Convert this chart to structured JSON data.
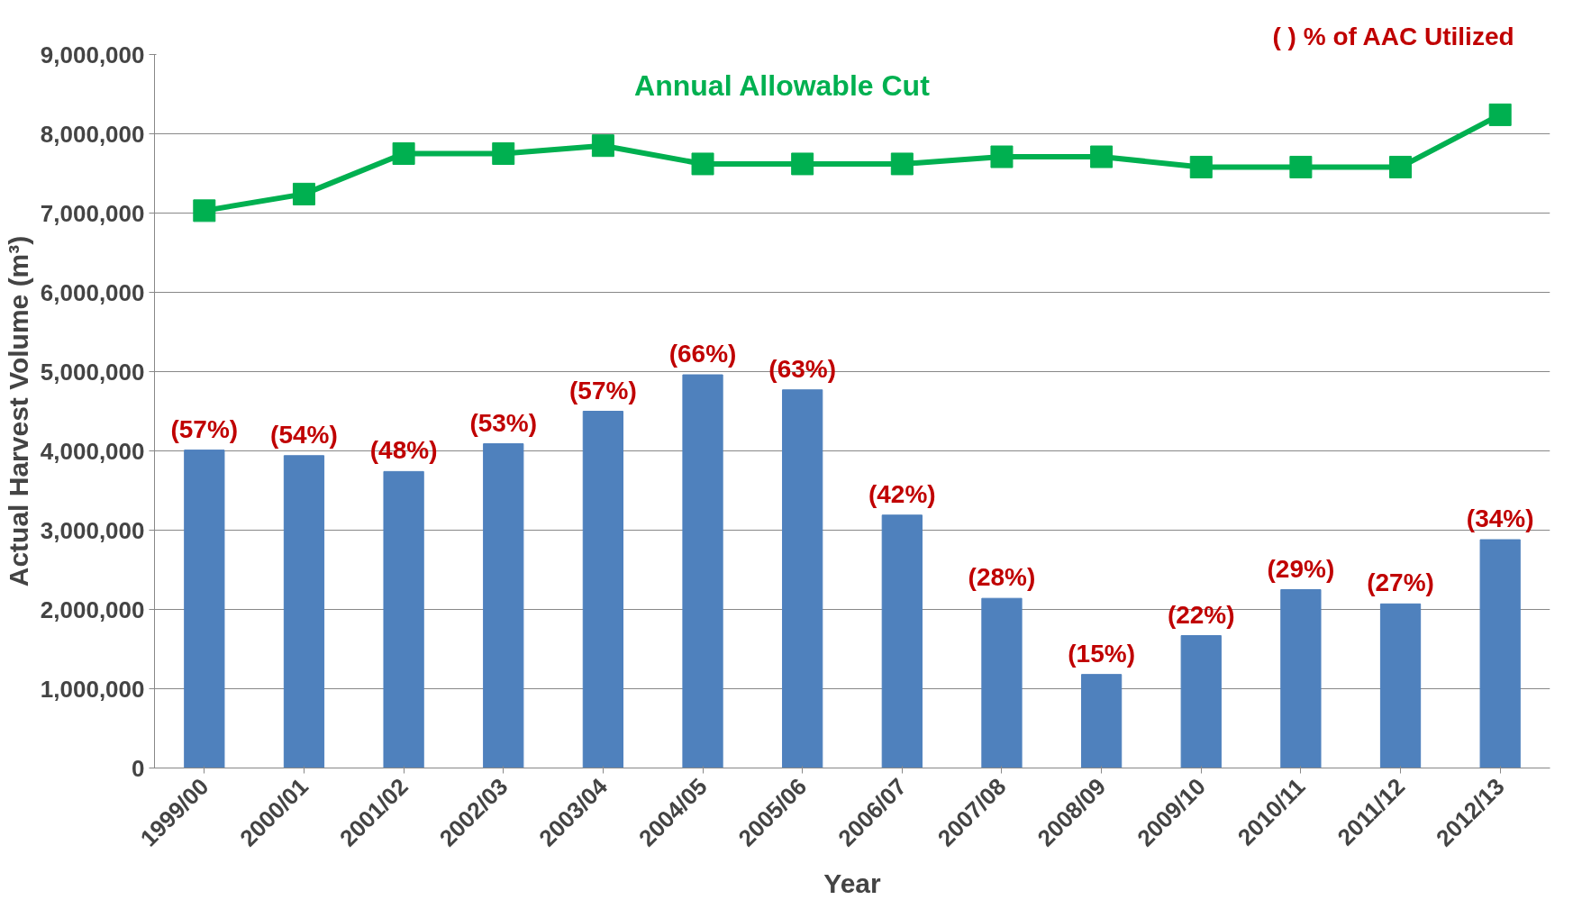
{
  "chart_data": {
    "type": "bar",
    "xlabel": "Year",
    "ylabel": "Actual Harvest Volume (m³)",
    "categories": [
      "1999/00",
      "2000/01",
      "2001/02",
      "2002/03",
      "2003/04",
      "2004/05",
      "2005/06",
      "2006/07",
      "2007/08",
      "2008/09",
      "2009/10",
      "2010/11",
      "2011/12",
      "2012/13"
    ],
    "series": [
      {
        "color": "#4f81bd",
        "values": [
          4010000,
          3940000,
          3740000,
          4090000,
          4500000,
          4960000,
          4770000,
          3190000,
          2140000,
          1180000,
          1670000,
          2250000,
          2070000,
          2880000
        ]
      },
      {
        "type": "line",
        "name": "Annual Allowable Cut",
        "color": "#00b050",
        "marker": "square",
        "values": [
          7030000,
          7240000,
          7750000,
          7750000,
          7850000,
          7620000,
          7620000,
          7620000,
          7710000,
          7710000,
          7580000,
          7580000,
          7580000,
          8240000
        ]
      }
    ],
    "ylim": [
      0,
      9000000
    ],
    "yticks": [
      {
        "value": 0,
        "label": "0"
      },
      {
        "value": 1000000,
        "label": "1,000,000"
      },
      {
        "value": 2000000,
        "label": "2,000,000"
      },
      {
        "value": 3000000,
        "label": "3,000,000"
      },
      {
        "value": 4000000,
        "label": "4,000,000"
      },
      {
        "value": 5000000,
        "label": "5,000,000"
      },
      {
        "value": 6000000,
        "label": "6,000,000"
      },
      {
        "value": 7000000,
        "label": "7,000,000"
      },
      {
        "value": 8000000,
        "label": "8,000,000"
      },
      {
        "value": 9000000,
        "label": "9,000,000"
      }
    ],
    "grid": "y",
    "legend": false,
    "annotations": [
      "(      ) % of AAC Utilized",
      {
        "text": "(57%)",
        "x": "1999/00",
        "y": 4010000
      },
      {
        "text": "(54%)",
        "x": "2000/01",
        "y": 3940000
      },
      {
        "text": "(48%)",
        "x": "2001/02",
        "y": 3740000
      },
      {
        "text": "(53%)",
        "x": "2002/03",
        "y": 4090000
      },
      {
        "text": "(57%)",
        "x": "2003/04",
        "y": 4500000
      },
      {
        "text": "(66%)",
        "x": "2004/05",
        "y": 4960000
      },
      {
        "text": "(63%)",
        "x": "2005/06",
        "y": 4770000
      },
      {
        "text": "(42%)",
        "x": "2006/07",
        "y": 3190000
      },
      {
        "text": "(28%)",
        "x": "2007/08",
        "y": 2140000
      },
      {
        "text": "(15%)",
        "x": "2008/09",
        "y": 1180000
      },
      {
        "text": "(22%)",
        "x": "2009/10",
        "y": 1670000
      },
      {
        "text": "(29%)",
        "x": "2010/11",
        "y": 2250000
      },
      {
        "text": "(27%)",
        "x": "2011/12",
        "y": 2070000
      },
      {
        "text": "(34%)",
        "x": "2012/13",
        "y": 2880000
      }
    ]
  }
}
